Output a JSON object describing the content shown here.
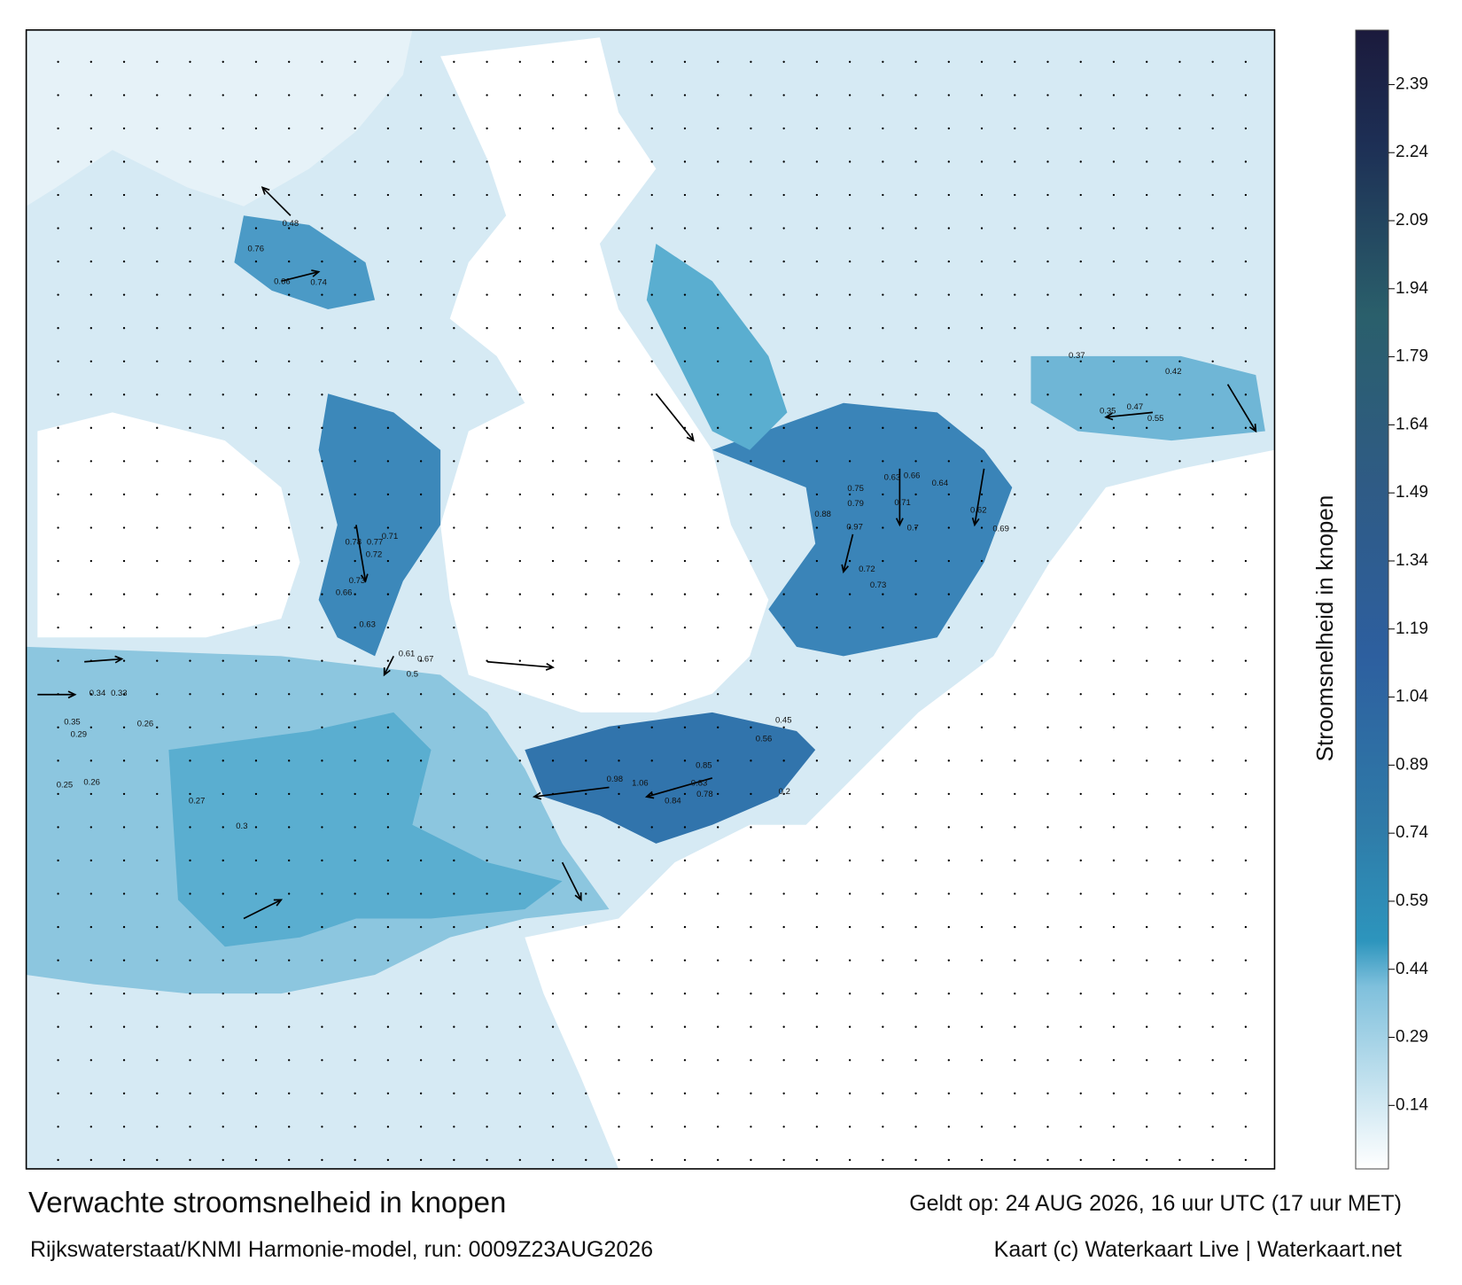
{
  "title": "Verwachte stroomsnelheid in knopen",
  "valid_time": "Geldt op: 24 AUG 2026, 16 uur UTC (17 uur MET)",
  "source": "Rijkswaterstaat/KNMI Harmonie-model, run: 0009Z23AUG2026",
  "credit": "Kaart (c) Waterkaart Live | Waterkaart.net",
  "colorbar": {
    "label": "Stroomsnelheid in knopen",
    "range": [
      0,
      2.51
    ],
    "ticks": [
      0.14,
      0.29,
      0.44,
      0.59,
      0.74,
      0.89,
      1.04,
      1.19,
      1.34,
      1.49,
      1.64,
      1.79,
      1.94,
      2.09,
      2.24,
      2.39
    ]
  },
  "map": {
    "current_labels": [
      0.97,
      0.98,
      1.06,
      0.88,
      0.85,
      0.83,
      0.78,
      0.84,
      0.79,
      0.75,
      0.71,
      0.72,
      0.73,
      0.63,
      0.64,
      0.66,
      0.7,
      0.76,
      0.48,
      0.66,
      0.74,
      0.78,
      0.77,
      0.72,
      0.71,
      0.73,
      0.66,
      0.63,
      0.61,
      0.67,
      0.5,
      0.34,
      0.33,
      0.35,
      0.29,
      0.26,
      0.25,
      0.26,
      0.27,
      0.3,
      0.47,
      0.35,
      0.55,
      0.42,
      0.37,
      0.2,
      0.56,
      0.45,
      0.62,
      0.69
    ]
  }
}
